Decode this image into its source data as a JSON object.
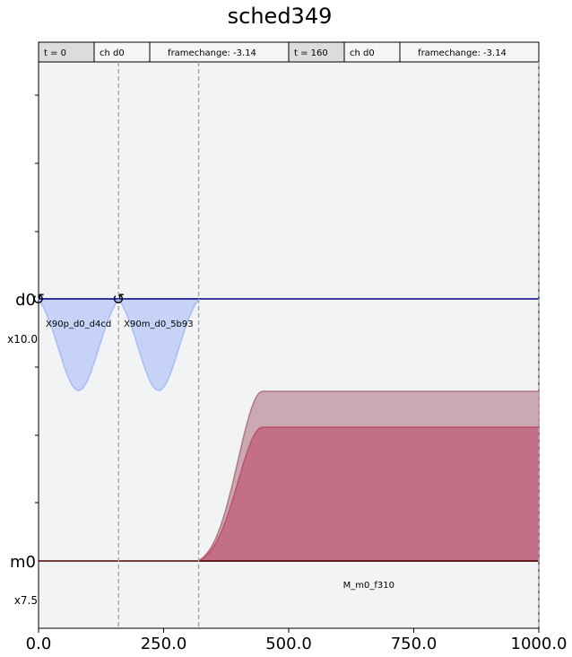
{
  "chart_data": {
    "type": "area",
    "title": "sched349",
    "xlabel": "",
    "ylabel": "",
    "xlim": [
      0,
      1000
    ],
    "x_ticks": [
      0,
      250,
      500,
      750,
      1000
    ],
    "x_tick_labels": [
      "0.0",
      "250.0",
      "500.0",
      "750.0",
      "1000.0"
    ],
    "grid": false,
    "event_table": [
      {
        "time": "t = 0",
        "channel": "ch d0",
        "event": "framechange: -3.14"
      },
      {
        "time": "t = 160",
        "channel": "ch d0",
        "event": "framechange: -3.14"
      }
    ],
    "channels": [
      {
        "name": "d0",
        "scale": "x10.0"
      },
      {
        "name": "m0",
        "scale": "x7.5"
      }
    ],
    "framechange_markers": [
      {
        "channel": "d0",
        "t": 0,
        "symbol": "↺"
      },
      {
        "channel": "d0",
        "t": 160,
        "symbol": "↺"
      }
    ],
    "barriers": [
      160,
      320,
      1000
    ],
    "pulses": [
      {
        "channel": "d0",
        "label": "X90p_d0_d4cd",
        "shape": "gaussian",
        "t0": 0,
        "duration": 160,
        "color": "#a8bcf6"
      },
      {
        "channel": "d0",
        "label": "X90m_d0_5b93",
        "shape": "gaussian",
        "t0": 160,
        "duration": 160,
        "color": "#a8bcf6"
      },
      {
        "channel": "m0",
        "label": "M_m0_f310",
        "shape": "gaussian_square",
        "t0": 320,
        "duration": 680,
        "rise": 128,
        "color_real": "#be506f",
        "color_imag": "#b07886"
      }
    ],
    "colors": {
      "background": "#f2f3f4",
      "axis_line": "#000080",
      "barrier": "#a9a9a9"
    }
  }
}
